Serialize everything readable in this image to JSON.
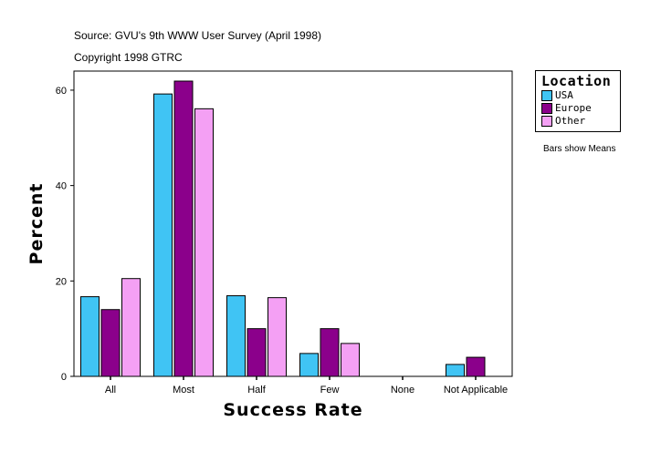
{
  "source": "Source: GVU's 9th WWW User Survey (April 1998)",
  "copyright": "Copyright 1998 GTRC",
  "note": "Bars show Means",
  "chart_data": {
    "type": "bar",
    "xlabel": "Success Rate",
    "ylabel": "Percent",
    "categories": [
      "All",
      "Most",
      "Half",
      "Few",
      "None",
      "Not Applicable"
    ],
    "ylim": [
      0,
      64
    ],
    "yticks": [
      0,
      20,
      40,
      60
    ],
    "grid": false,
    "legend": {
      "title": "Location",
      "placement": "right"
    },
    "series": [
      {
        "name": "USA",
        "color": "#40c4f4",
        "values": [
          16.7,
          59.2,
          16.9,
          4.8,
          0,
          2.5
        ]
      },
      {
        "name": "Europe",
        "color": "#8b008b",
        "values": [
          14.0,
          61.9,
          10.0,
          10.0,
          0,
          4.0
        ]
      },
      {
        "name": "Other",
        "color": "#f4a0f4",
        "values": [
          20.5,
          56.1,
          16.5,
          6.9,
          0,
          0
        ]
      }
    ]
  }
}
